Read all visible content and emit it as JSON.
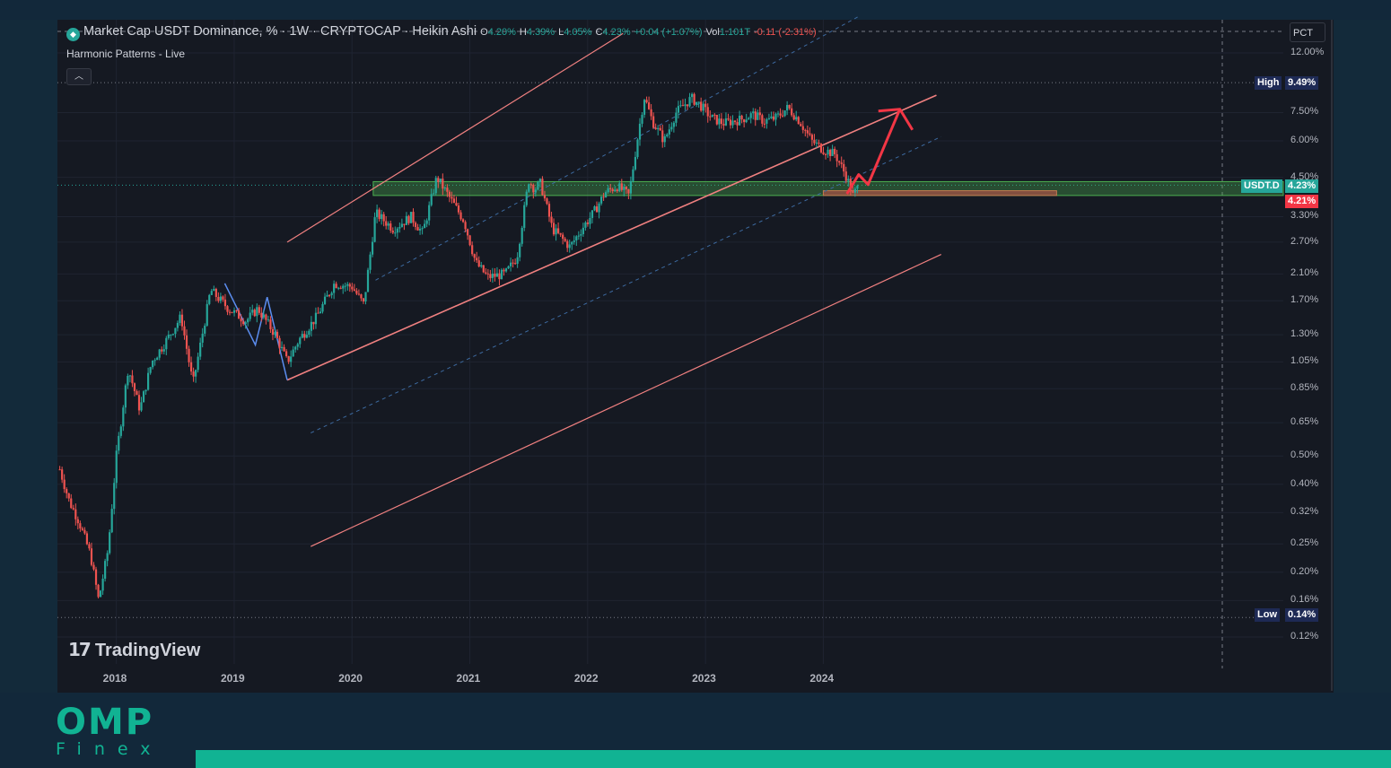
{
  "legend": {
    "title": "Market Cap USDT Dominance, % · 1W · CRYPTOCAP · Heikin Ashi",
    "o_label": "O",
    "o_value": "4.20%",
    "h_label": "H",
    "h_value": "4.39%",
    "l_label": "L",
    "l_value": "4.05%",
    "c_label": "C",
    "c_value": "4.23%",
    "change": "+0.04 (+1.07%)",
    "vol_label": "Vol",
    "vol_value": "1.101T",
    "vol_change": "-0.11 (-2.31%)"
  },
  "indicator": "Harmonic Patterns - Live",
  "collapse_icon": "chevron-up-icon",
  "scale_mode": "PCT",
  "branding": {
    "tv": "TradingView",
    "omp": "OMP",
    "finex": "Finex"
  },
  "colors": {
    "up": "#26a69a",
    "down": "#ef5350",
    "channel": "#f08080",
    "dashed": "#3d6aa0",
    "zone": "#4caf50",
    "arrow": "#f23645"
  },
  "chart_data": {
    "type": "candlestick",
    "symbol": "USDT.D",
    "scale": "log",
    "ylim": [
      0.11,
      13.5
    ],
    "xlim": [
      2017.5,
      2026.0
    ],
    "y_ticks": [
      "12.00%",
      "7.50%",
      "6.00%",
      "4.50%",
      "3.30%",
      "2.70%",
      "2.10%",
      "1.70%",
      "1.30%",
      "1.05%",
      "0.85%",
      "0.65%",
      "0.50%",
      "0.40%",
      "0.32%",
      "0.25%",
      "0.20%",
      "0.16%",
      "0.12%"
    ],
    "x_ticks": [
      "2018",
      "2019",
      "2020",
      "2021",
      "2022",
      "2023",
      "2024"
    ],
    "high": {
      "label": "High",
      "value": "9.49%"
    },
    "low": {
      "label": "Low",
      "value": "0.14%"
    },
    "last_price": {
      "label": "USDT.D",
      "value": "4.23%"
    },
    "last_close_tag": "4.21%",
    "series_path": [
      [
        2017.52,
        0.45
      ],
      [
        2017.6,
        0.35
      ],
      [
        2017.68,
        0.3
      ],
      [
        2017.78,
        0.23
      ],
      [
        2017.85,
        0.16
      ],
      [
        2017.93,
        0.24
      ],
      [
        2018.0,
        0.5
      ],
      [
        2018.1,
        1.0
      ],
      [
        2018.2,
        0.72
      ],
      [
        2018.3,
        1.05
      ],
      [
        2018.4,
        1.2
      ],
      [
        2018.55,
        1.5
      ],
      [
        2018.65,
        0.88
      ],
      [
        2018.8,
        1.85
      ],
      [
        2018.95,
        1.6
      ],
      [
        2019.1,
        1.45
      ],
      [
        2019.2,
        1.6
      ],
      [
        2019.35,
        1.3
      ],
      [
        2019.45,
        1.05
      ],
      [
        2019.55,
        1.25
      ],
      [
        2019.7,
        1.5
      ],
      [
        2019.85,
        1.95
      ],
      [
        2020.0,
        1.9
      ],
      [
        2020.1,
        1.65
      ],
      [
        2020.2,
        3.4
      ],
      [
        2020.35,
        3.0
      ],
      [
        2020.5,
        3.3
      ],
      [
        2020.6,
        2.9
      ],
      [
        2020.72,
        4.5
      ],
      [
        2020.8,
        4.0
      ],
      [
        2020.95,
        3.2
      ],
      [
        2021.05,
        2.3
      ],
      [
        2021.15,
        2.05
      ],
      [
        2021.3,
        2.1
      ],
      [
        2021.4,
        2.4
      ],
      [
        2021.5,
        4.4
      ],
      [
        2021.55,
        4.1
      ],
      [
        2021.6,
        4.3
      ],
      [
        2021.7,
        3.0
      ],
      [
        2021.85,
        2.6
      ],
      [
        2021.95,
        3.0
      ],
      [
        2022.05,
        3.4
      ],
      [
        2022.15,
        4.0
      ],
      [
        2022.25,
        4.2
      ],
      [
        2022.35,
        3.9
      ],
      [
        2022.42,
        6.0
      ],
      [
        2022.48,
        8.5
      ],
      [
        2022.55,
        7.0
      ],
      [
        2022.65,
        6.0
      ],
      [
        2022.75,
        7.5
      ],
      [
        2022.88,
        8.4
      ],
      [
        2022.95,
        8.0
      ],
      [
        2023.05,
        7.2
      ],
      [
        2023.15,
        6.9
      ],
      [
        2023.3,
        7.1
      ],
      [
        2023.4,
        7.4
      ],
      [
        2023.5,
        7.0
      ],
      [
        2023.6,
        7.2
      ],
      [
        2023.7,
        7.8
      ],
      [
        2023.8,
        7.0
      ],
      [
        2023.9,
        6.0
      ],
      [
        2024.0,
        5.6
      ],
      [
        2024.1,
        5.4
      ],
      [
        2024.2,
        4.5
      ],
      [
        2024.25,
        3.9
      ],
      [
        2024.3,
        4.2
      ]
    ]
  }
}
